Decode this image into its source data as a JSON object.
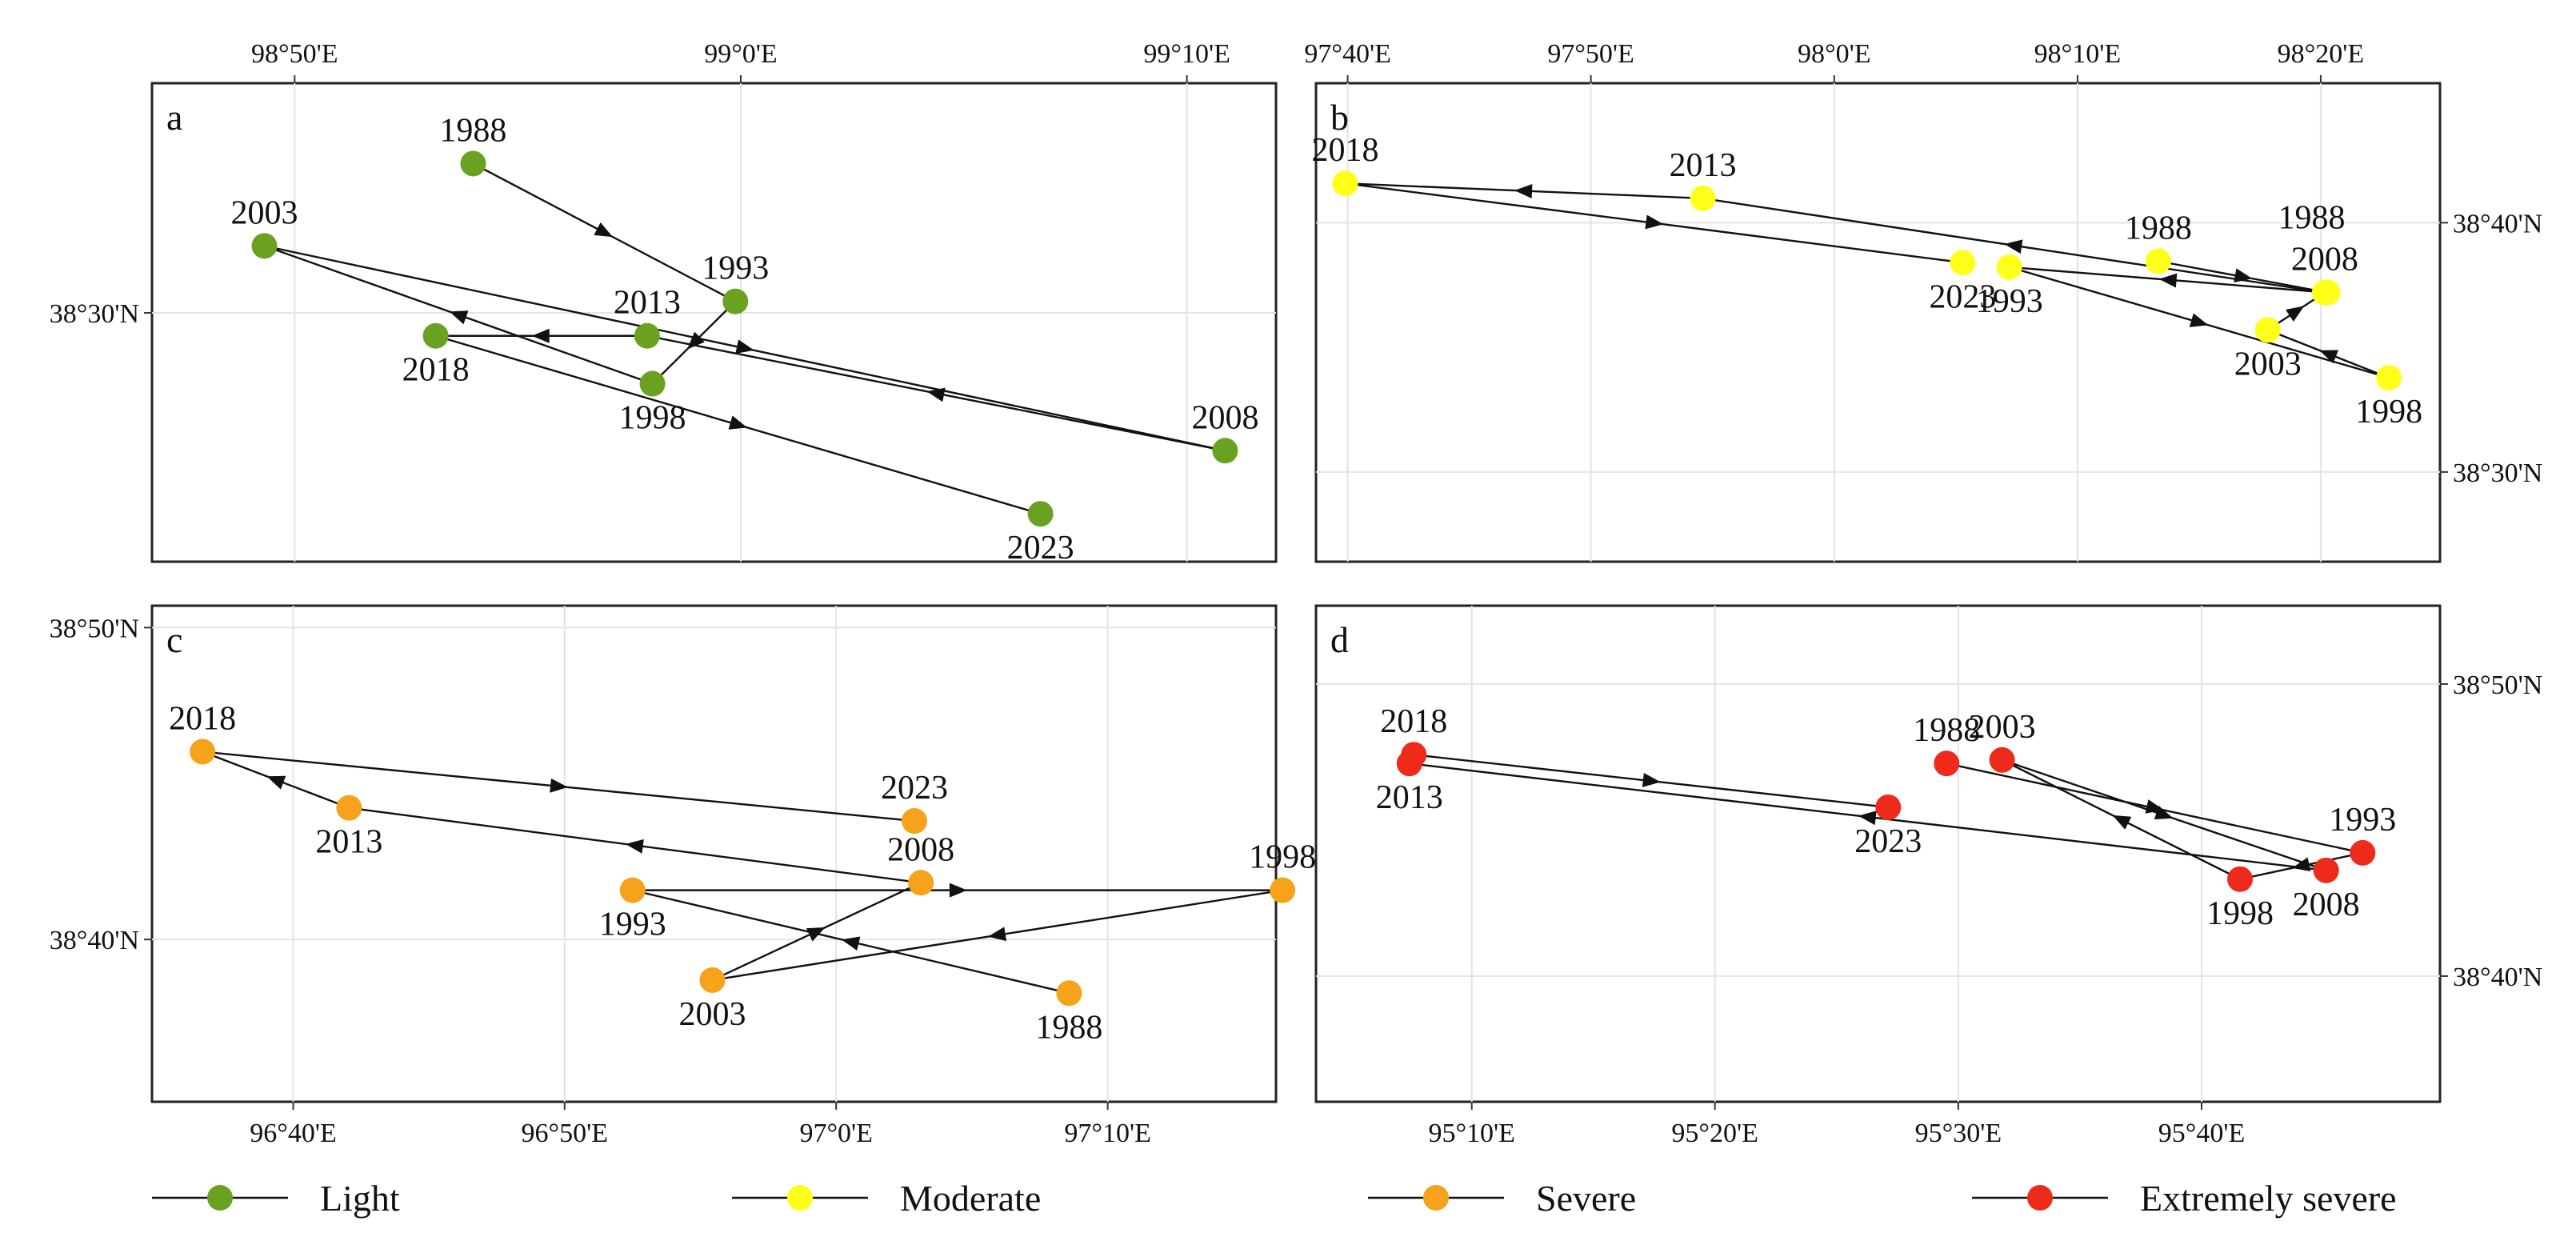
{
  "figure": {
    "legend": [
      {
        "key": "light",
        "label": "Light",
        "color": "#6aa121"
      },
      {
        "key": "moderate",
        "label": "Moderate",
        "color": "#ffff1a"
      },
      {
        "key": "severe",
        "label": "Severe",
        "color": "#f7a21b"
      },
      {
        "key": "extreme",
        "label": "Extremely severe",
        "color": "#ee2a1b"
      }
    ]
  },
  "chart_data": [
    {
      "type": "scatter",
      "panel": "a",
      "series_name": "Light",
      "color": "#6aa121",
      "xlim": [
        98.78,
        99.2
      ],
      "ylim": [
        38.37,
        38.62
      ],
      "x_ticks": [
        {
          "v": 98.8333,
          "label": "98°50'E"
        },
        {
          "v": 99.0,
          "label": "99°0'E"
        },
        {
          "v": 99.1667,
          "label": "99°10'E"
        }
      ],
      "y_ticks": [
        {
          "v": 38.5,
          "label": "38°30'N"
        }
      ],
      "x_axis_side": "top",
      "y_axis_side": "left",
      "points": [
        {
          "year": "1988",
          "lon": 98.9,
          "lat": 38.578,
          "label_pos": "above"
        },
        {
          "year": "1993",
          "lon": 98.998,
          "lat": 38.506,
          "label_pos": "above"
        },
        {
          "year": "1998",
          "lon": 98.967,
          "lat": 38.463,
          "label_pos": "below"
        },
        {
          "year": "2003",
          "lon": 98.822,
          "lat": 38.535,
          "label_pos": "above"
        },
        {
          "year": "2008",
          "lon": 99.181,
          "lat": 38.428,
          "label_pos": "above"
        },
        {
          "year": "2013",
          "lon": 98.965,
          "lat": 38.488,
          "label_pos": "above"
        },
        {
          "year": "2018",
          "lon": 98.886,
          "lat": 38.488,
          "label_pos": "below"
        },
        {
          "year": "2023",
          "lon": 99.112,
          "lat": 38.395,
          "label_pos": "below"
        }
      ]
    },
    {
      "type": "scatter",
      "panel": "b",
      "series_name": "Moderate",
      "color": "#ffff1a",
      "xlim": [
        97.645,
        98.415
      ],
      "ylim": [
        38.44,
        38.76
      ],
      "x_ticks": [
        {
          "v": 97.6667,
          "label": "97°40'E"
        },
        {
          "v": 97.8333,
          "label": "97°50'E"
        },
        {
          "v": 98.0,
          "label": "98°0'E"
        },
        {
          "v": 98.1667,
          "label": "98°10'E"
        },
        {
          "v": 98.3333,
          "label": "98°20'E"
        }
      ],
      "y_ticks": [
        {
          "v": 38.6667,
          "label": "38°40'N"
        },
        {
          "v": 38.5,
          "label": "38°30'N"
        }
      ],
      "x_axis_side": "top",
      "y_axis_side": "right",
      "points": [
        {
          "year": "1988",
          "lon": 98.222,
          "lat": 38.641,
          "label_pos": "above"
        },
        {
          "year": "1988",
          "lon": 98.338,
          "lat": 38.62,
          "label_pos": "above-left"
        },
        {
          "year": "1993",
          "lon": 98.12,
          "lat": 38.637,
          "label_pos": "below"
        },
        {
          "year": "1998",
          "lon": 98.38,
          "lat": 38.563,
          "label_pos": "below"
        },
        {
          "year": "2003",
          "lon": 98.297,
          "lat": 38.595,
          "label_pos": "below"
        },
        {
          "year": "2008",
          "lon": 98.336,
          "lat": 38.62,
          "label_pos": "above"
        },
        {
          "year": "2013",
          "lon": 97.91,
          "lat": 38.683,
          "label_pos": "above"
        },
        {
          "year": "2018",
          "lon": 97.665,
          "lat": 38.693,
          "label_pos": "above"
        },
        {
          "year": "2023",
          "lon": 98.088,
          "lat": 38.64,
          "label_pos": "below"
        }
      ]
    },
    {
      "type": "scatter",
      "panel": "c",
      "series_name": "Severe",
      "color": "#f7a21b",
      "xlim": [
        96.58,
        97.27
      ],
      "ylim": [
        38.58,
        38.845
      ],
      "x_ticks": [
        {
          "v": 96.6667,
          "label": "96°40'E"
        },
        {
          "v": 96.8333,
          "label": "96°50'E"
        },
        {
          "v": 97.0,
          "label": "97°0'E"
        },
        {
          "v": 97.1667,
          "label": "97°10'E"
        }
      ],
      "y_ticks": [
        {
          "v": 38.8333,
          "label": "38°50'N"
        },
        {
          "v": 38.6667,
          "label": "38°40'N"
        }
      ],
      "x_axis_side": "bottom",
      "y_axis_side": "left",
      "points": [
        {
          "year": "1988",
          "lon": 97.143,
          "lat": 38.638,
          "label_pos": "below"
        },
        {
          "year": "1993",
          "lon": 96.875,
          "lat": 38.693,
          "label_pos": "below"
        },
        {
          "year": "1998",
          "lon": 97.274,
          "lat": 38.693,
          "label_pos": "above"
        },
        {
          "year": "2003",
          "lon": 96.924,
          "lat": 38.645,
          "label_pos": "below"
        },
        {
          "year": "2008",
          "lon": 97.052,
          "lat": 38.697,
          "label_pos": "above"
        },
        {
          "year": "2013",
          "lon": 96.701,
          "lat": 38.737,
          "label_pos": "below"
        },
        {
          "year": "2018",
          "lon": 96.611,
          "lat": 38.767,
          "label_pos": "above"
        },
        {
          "year": "2023",
          "lon": 97.048,
          "lat": 38.73,
          "label_pos": "above"
        }
      ]
    },
    {
      "type": "scatter",
      "panel": "d",
      "series_name": "Extremely severe",
      "color": "#ee2a1b",
      "xlim": [
        95.06,
        95.83
      ],
      "ylim": [
        38.595,
        38.878
      ],
      "x_ticks": [
        {
          "v": 95.1667,
          "label": "95°10'E"
        },
        {
          "v": 95.3333,
          "label": "95°20'E"
        },
        {
          "v": 95.5,
          "label": "95°30'E"
        },
        {
          "v": 95.6667,
          "label": "95°40'E"
        }
      ],
      "y_ticks": [
        {
          "v": 38.8333,
          "label": "38°50'N"
        },
        {
          "v": 38.6667,
          "label": "38°40'N"
        }
      ],
      "x_axis_side": "bottom",
      "y_axis_side": "right",
      "points": [
        {
          "year": "1988",
          "lon": 95.492,
          "lat": 38.788,
          "label_pos": "above"
        },
        {
          "year": "1993",
          "lon": 95.777,
          "lat": 38.737,
          "label_pos": "above"
        },
        {
          "year": "1998",
          "lon": 95.693,
          "lat": 38.722,
          "label_pos": "below"
        },
        {
          "year": "2003",
          "lon": 95.53,
          "lat": 38.79,
          "label_pos": "above"
        },
        {
          "year": "2008",
          "lon": 95.752,
          "lat": 38.727,
          "label_pos": "below"
        },
        {
          "year": "2013",
          "lon": 95.124,
          "lat": 38.788,
          "label_pos": "below"
        },
        {
          "year": "2018",
          "lon": 95.127,
          "lat": 38.793,
          "label_pos": "above"
        },
        {
          "year": "2023",
          "lon": 95.452,
          "lat": 38.763,
          "label_pos": "below"
        }
      ]
    }
  ]
}
